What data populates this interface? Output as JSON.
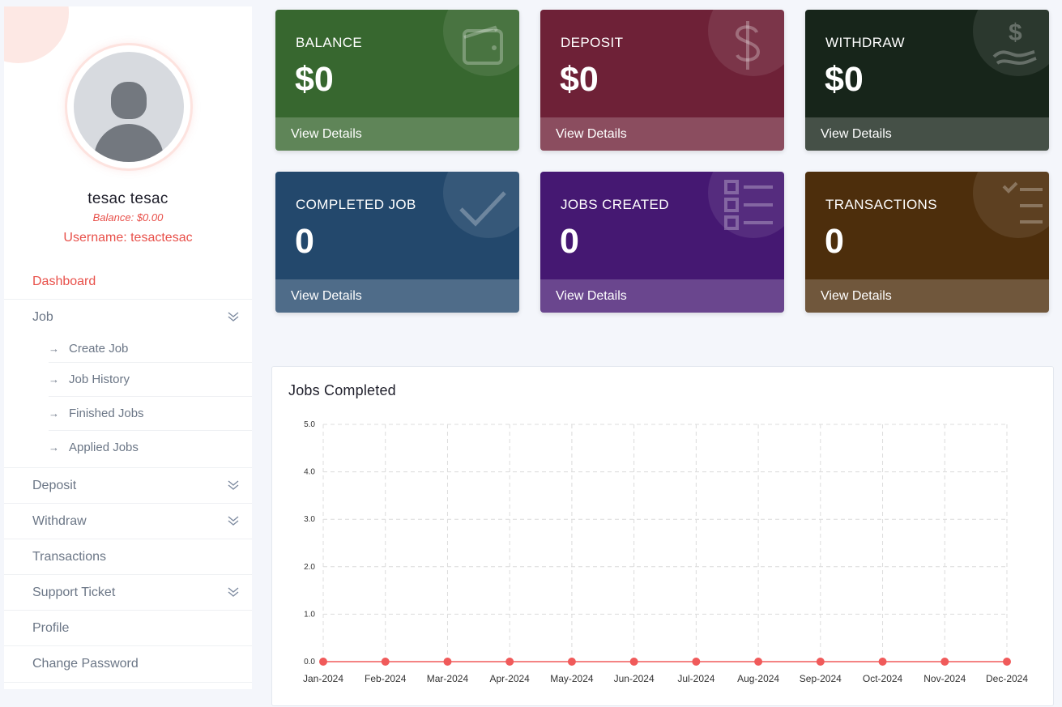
{
  "sidebar": {
    "user": {
      "name": "tesac tesac",
      "balance": "Balance: $0.00",
      "username": "Username: tesactesac"
    },
    "items": [
      {
        "label": "Dashboard",
        "active": true
      },
      {
        "label": "Job",
        "chevron": true
      },
      {
        "label": "Deposit",
        "chevron": true
      },
      {
        "label": "Withdraw",
        "chevron": true
      },
      {
        "label": "Transactions"
      },
      {
        "label": "Support Ticket",
        "chevron": true
      },
      {
        "label": "Profile"
      },
      {
        "label": "Change Password"
      }
    ],
    "job_submenu": [
      {
        "label": "Create Job"
      },
      {
        "label": "Job History"
      },
      {
        "label": "Finished Jobs"
      },
      {
        "label": "Applied Jobs"
      }
    ],
    "sub_arrow": "→",
    "chevron_glyph": "⌄⌄"
  },
  "cards": [
    {
      "label": "BALANCE",
      "value": "$0",
      "link": "View Details",
      "color": "#37672f",
      "icon": "wallet-icon"
    },
    {
      "label": "DEPOSIT",
      "value": "$0",
      "link": "View Details",
      "color": "#6e2137",
      "icon": "dollar-icon"
    },
    {
      "label": "WITHDRAW",
      "value": "$0",
      "link": "View Details",
      "color": "#17251a",
      "icon": "withdraw-hand-icon"
    },
    {
      "label": "COMPLETED JOB",
      "value": "0",
      "link": "View Details",
      "color": "#23486c",
      "icon": "checkmark-icon"
    },
    {
      "label": "JOBS CREATED",
      "value": "0",
      "link": "View Details",
      "color": "#451872",
      "icon": "checklist-icon"
    },
    {
      "label": "TRANSACTIONS",
      "value": "0",
      "link": "View Details",
      "color": "#4d2e0c",
      "icon": "task-list-icon"
    }
  ],
  "chart_panel": {
    "title": "Jobs Completed"
  },
  "chart_data": {
    "type": "line",
    "title": "Jobs Completed",
    "categories": [
      "Jan-2024",
      "Feb-2024",
      "Mar-2024",
      "Apr-2024",
      "May-2024",
      "Jun-2024",
      "Jul-2024",
      "Aug-2024",
      "Sep-2024",
      "Oct-2024",
      "Nov-2024",
      "Dec-2024"
    ],
    "series": [
      {
        "values": [
          0,
          0,
          0,
          0,
          0,
          0,
          0,
          0,
          0,
          0,
          0,
          0
        ],
        "color": "#f05a5a"
      }
    ],
    "ylim": [
      0,
      5
    ],
    "yticks": [
      "0.0",
      "1.0",
      "2.0",
      "3.0",
      "4.0",
      "5.0"
    ],
    "grid": true,
    "grid_style": "dashed"
  }
}
